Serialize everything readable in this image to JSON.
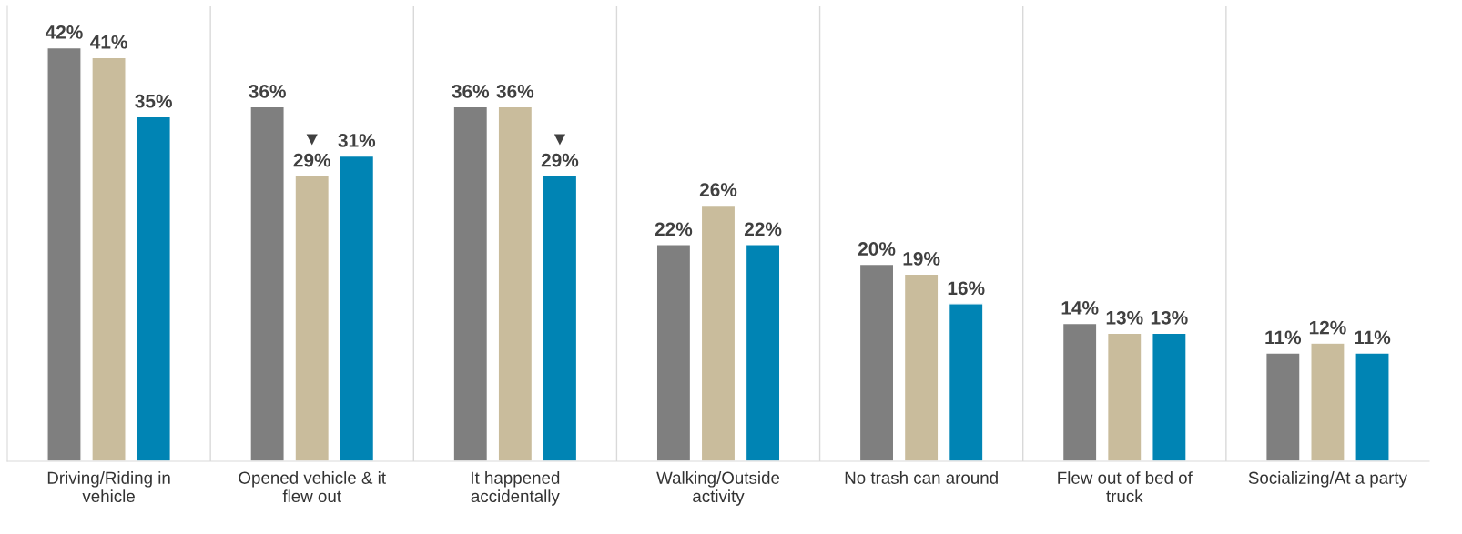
{
  "chart_data": {
    "type": "bar",
    "categories": [
      "Driving/Riding in\nvehicle",
      "Opened vehicle & it\nflew out",
      "It happened\naccidentally",
      "Walking/Outside\nactivity",
      "No trash can around",
      "Flew out of bed of\ntruck",
      "Socializing/At a party"
    ],
    "series": [
      {
        "color": "#7f7f7f",
        "values": [
          42,
          36,
          36,
          22,
          20,
          14,
          11
        ],
        "value_labels": [
          "42%",
          "36%",
          "36%",
          "22%",
          "20%",
          "14%",
          "11%"
        ]
      },
      {
        "color": "#c9bc9c",
        "values": [
          41,
          29,
          36,
          26,
          19,
          13,
          12
        ],
        "value_labels": [
          "41%",
          "▼\n29%",
          "36%",
          "26%",
          "19%",
          "13%",
          "12%"
        ]
      },
      {
        "color": "#0084b4",
        "values": [
          35,
          31,
          29,
          22,
          16,
          13,
          11
        ],
        "value_labels": [
          "35%",
          "31%",
          "▼\n29%",
          "22%",
          "16%",
          "13%",
          "11%"
        ]
      }
    ],
    "grid": "x",
    "legend": false,
    "tick_labels": "x"
  }
}
